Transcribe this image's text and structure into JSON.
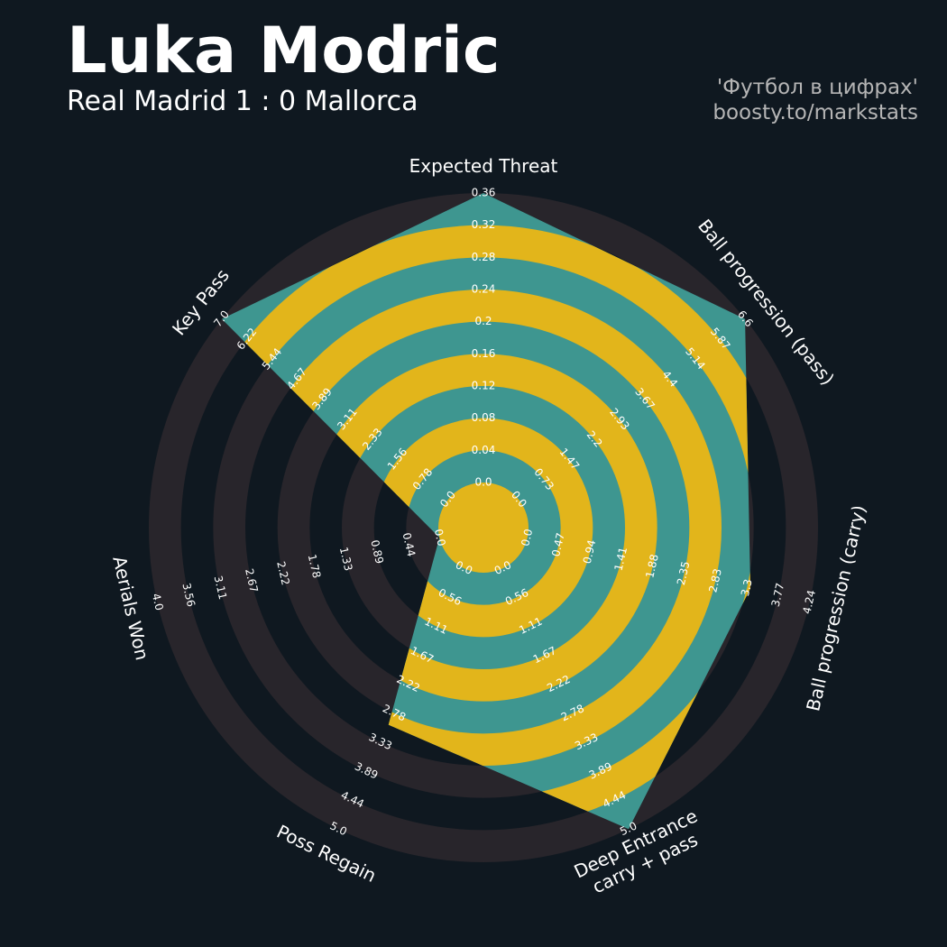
{
  "chart_data": {
    "type": "radar",
    "title": "Luka Modric",
    "subtitle": "Real Madrid 1 : 0 Mallorca",
    "credits": [
      "'Футбол в цифрах'",
      "boosty.to/markstats"
    ],
    "colors": {
      "background": "#0f1820",
      "rings": "#28252b",
      "polygon": "#3e9690",
      "polygon_rings": "#e2b51b",
      "text": "#ffffff",
      "credits": "#b5b5b5"
    },
    "axes": [
      {
        "label": [
          "Expected Threat"
        ],
        "lim": [
          0,
          0.36
        ],
        "ticks": [
          {
            "value": 0,
            "label": "0.0"
          },
          0.04,
          0.08,
          0.12,
          0.16,
          0.2,
          0.24,
          0.28,
          0.32,
          0.36
        ]
      },
      {
        "label": [
          "Ball progression (pass)"
        ],
        "lim": [
          0,
          6.6
        ],
        "ticks": [
          {
            "value": 0,
            "label": "0.0"
          },
          0.73,
          1.47,
          2.2,
          2.93,
          3.67,
          4.4,
          5.14,
          5.87,
          6.6
        ]
      },
      {
        "label": [
          "Ball progression (carry)"
        ],
        "lim": [
          0,
          4.24
        ],
        "ticks": [
          {
            "value": 0,
            "label": "0.0"
          },
          0.47,
          0.94,
          1.41,
          1.88,
          2.35,
          2.83,
          3.3,
          3.77,
          4.24
        ]
      },
      {
        "label": [
          "Deep Entrance",
          "carry + pass"
        ],
        "lim": [
          0,
          5
        ],
        "ticks": [
          {
            "value": 0,
            "label": "0.0"
          },
          0.56,
          1.11,
          1.67,
          2.22,
          2.78,
          3.33,
          3.89,
          4.44,
          {
            "value": 5,
            "label": "5.0"
          }
        ]
      },
      {
        "label": [
          "Poss Regain"
        ],
        "lim": [
          0,
          5
        ],
        "ticks": [
          {
            "value": 0,
            "label": "0.0"
          },
          0.56,
          1.11,
          1.67,
          2.22,
          2.78,
          3.33,
          3.89,
          4.44,
          {
            "value": 5,
            "label": "5.0"
          }
        ]
      },
      {
        "label": [
          "Aerials Won"
        ],
        "lim": [
          0,
          4
        ],
        "ticks": [
          {
            "value": 0,
            "label": "0.0"
          },
          0.44,
          0.89,
          1.33,
          1.78,
          2.22,
          2.67,
          3.11,
          3.56,
          {
            "value": 4,
            "label": "4.0"
          }
        ]
      },
      {
        "label": [
          "Key Pass"
        ],
        "lim": [
          0,
          7
        ],
        "ticks": [
          {
            "value": 0,
            "label": "0.0"
          },
          0.78,
          1.56,
          2.33,
          3.11,
          3.89,
          4.67,
          5.44,
          6.22,
          {
            "value": 7,
            "label": "7.0"
          }
        ]
      }
    ],
    "values": [
      0.36,
      6.6,
      3.35,
      5.0,
      3.0,
      0,
      7.0
    ]
  }
}
